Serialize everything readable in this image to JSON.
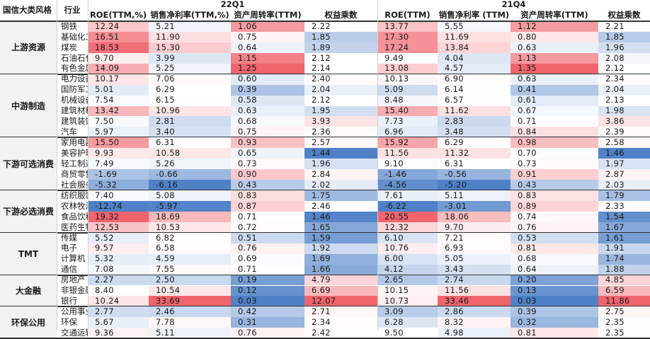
{
  "header": {
    "style_col": "国信大类风格",
    "industry_col": "行业",
    "periods": [
      "22Q1",
      "21Q4"
    ],
    "metrics": [
      "ROE(TTM,%)",
      "销售净利率(TTM,%)",
      "资产周转率(TTM)",
      "权益乘数"
    ],
    "metrics_21q4": [
      "ROE(TTM)",
      "销售净利率 (TTM)",
      "资产周转率(TTM)",
      "权益乘数"
    ]
  },
  "groups": [
    {
      "name": "上游资源",
      "rows": [
        {
          "industry": "钢铁",
          "q1": [
            "12.24",
            "5.21",
            "1.06",
            "2.22"
          ],
          "q4": [
            "13.77",
            "5.55",
            "1.12",
            "2.21"
          ]
        },
        {
          "industry": "基础化工",
          "q1": [
            "16.51",
            "11.90",
            "0.75",
            "1.85"
          ],
          "q4": [
            "17.30",
            "11.69",
            "0.80",
            "1.85"
          ]
        },
        {
          "industry": "煤炭",
          "q1": [
            "18.53",
            "15.30",
            "0.64",
            "1.89"
          ],
          "q4": [
            "17.24",
            "13.84",
            "0.63",
            "1.96"
          ]
        },
        {
          "industry": "石油石化",
          "q1": [
            "9.70",
            "3.99",
            "1.15",
            "2.12"
          ],
          "q4": [
            "9.49",
            "4.04",
            "1.13",
            "2.08"
          ]
        },
        {
          "industry": "有色金属",
          "q1": [
            "14.09",
            "5.25",
            "1.25",
            "2.14"
          ],
          "q4": [
            "13.08",
            "4.57",
            "1.35",
            "2.12"
          ]
        }
      ]
    },
    {
      "name": "中游制造",
      "rows": [
        {
          "industry": "电力设备",
          "q1": [
            "10.17",
            "7.06",
            "0.60",
            "2.40"
          ],
          "q4": [
            "10.13",
            "6.90",
            "0.63",
            "2.34"
          ]
        },
        {
          "industry": "国防军工",
          "q1": [
            "5.01",
            "6.29",
            "0.39",
            "2.04"
          ],
          "q4": [
            "5.09",
            "6.14",
            "0.41",
            "2.04"
          ]
        },
        {
          "industry": "机械设备",
          "q1": [
            "7.54",
            "6.15",
            "0.58",
            "2.12"
          ],
          "q4": [
            "8.48",
            "6.57",
            "0.61",
            "2.13"
          ]
        },
        {
          "industry": "建筑材料",
          "q1": [
            "13.42",
            "10.96",
            "0.63",
            "1.95"
          ],
          "q4": [
            "15.40",
            "11.62",
            "0.67",
            "1.98"
          ]
        },
        {
          "industry": "建筑装饰",
          "q1": [
            "7.50",
            "2.81",
            "0.68",
            "3.93"
          ],
          "q4": [
            "7.73",
            "2.83",
            "0.71",
            "3.86"
          ]
        },
        {
          "industry": "汽车",
          "q1": [
            "5.97",
            "3.40",
            "0.75",
            "2.36"
          ],
          "q4": [
            "6.96",
            "3.48",
            "0.84",
            "2.39"
          ]
        }
      ]
    },
    {
      "name": "下游可选消费",
      "rows": [
        {
          "industry": "家用电器",
          "q1": [
            "15.50",
            "6.31",
            "0.93",
            "2.57"
          ],
          "q4": [
            "15.92",
            "6.29",
            "0.98",
            "2.58"
          ]
        },
        {
          "industry": "美容护理",
          "q1": [
            "9.93",
            "10.58",
            "0.65",
            "1.44"
          ],
          "q4": [
            "11.56",
            "11.32",
            "0.70",
            "1.46"
          ]
        },
        {
          "industry": "轻工制造",
          "q1": [
            "7.49",
            "5.26",
            "0.73",
            "1.96"
          ],
          "q4": [
            "9.10",
            "6.31",
            "0.73",
            "1.97"
          ]
        },
        {
          "industry": "商贸零售",
          "q1": [
            "-1.69",
            "-0.66",
            "0.90",
            "2.84"
          ],
          "q4": [
            "-1.46",
            "-0.56",
            "0.91",
            "2.87"
          ]
        },
        {
          "industry": "社会服务",
          "q1": [
            "-5.32",
            "-6.16",
            "0.43",
            "2.02"
          ],
          "q4": [
            "-4.56",
            "-5.20",
            "0.43",
            "2.03"
          ]
        }
      ]
    },
    {
      "name": "下游必选消费",
      "rows": [
        {
          "industry": "纺织服饰",
          "q1": [
            "7.40",
            "5.08",
            "0.83",
            "1.75"
          ],
          "q4": [
            "7.61",
            "5.11",
            "0.83",
            "1.79"
          ]
        },
        {
          "industry": "农林牧渔",
          "q1": [
            "-12.74",
            "-5.97",
            "0.87",
            "2.46"
          ],
          "q4": [
            "-6.22",
            "-3.01",
            "0.89",
            "2.33"
          ]
        },
        {
          "industry": "食品饮料",
          "q1": [
            "19.32",
            "18.69",
            "0.71",
            "1.46"
          ],
          "q4": [
            "20.55",
            "18.06",
            "0.74",
            "1.54"
          ]
        },
        {
          "industry": "医药生物",
          "q1": [
            "12.53",
            "10.53",
            "0.72",
            "1.65"
          ],
          "q4": [
            "12.32",
            "9.70",
            "0.76",
            "1.67"
          ]
        }
      ]
    },
    {
      "name": "TMT",
      "rows": [
        {
          "industry": "传媒",
          "q1": [
            "5.52",
            "6.82",
            "0.51",
            "1.59"
          ],
          "q4": [
            "6.10",
            "7.21",
            "0.53",
            "1.61"
          ]
        },
        {
          "industry": "电子",
          "q1": [
            "9.57",
            "6.58",
            "0.76",
            "1.92"
          ],
          "q4": [
            "10.76",
            "6.93",
            "0.81",
            "1.91"
          ]
        },
        {
          "industry": "计算机",
          "q1": [
            "5.32",
            "4.59",
            "0.69",
            "1.69"
          ],
          "q4": [
            "6.00",
            "5.05",
            "0.68",
            "1.74"
          ]
        },
        {
          "industry": "通信",
          "q1": [
            "7.08",
            "7.55",
            "0.71",
            "1.66"
          ],
          "q4": [
            "4.12",
            "3.43",
            "0.64",
            "1.88"
          ]
        }
      ]
    },
    {
      "name": "大金融",
      "rows": [
        {
          "industry": "房地产",
          "q1": [
            "2.27",
            "2.50",
            "0.19",
            "4.79"
          ],
          "q4": [
            "2.65",
            "2.74",
            "0.20",
            "4.85"
          ]
        },
        {
          "industry": "非银金融",
          "q1": [
            "8.40",
            "10.54",
            "0.12",
            "6.69"
          ],
          "q4": [
            "10.15",
            "11.56",
            "0.13",
            "6.59"
          ]
        },
        {
          "industry": "银行",
          "q1": [
            "10.24",
            "33.69",
            "0.03",
            "12.07"
          ],
          "q4": [
            "10.73",
            "33.46",
            "0.03",
            "11.86"
          ]
        }
      ]
    },
    {
      "name": "环保公用",
      "rows": [
        {
          "industry": "公用事业",
          "q1": [
            "2.77",
            "2.46",
            "0.42",
            "2.71"
          ],
          "q4": [
            "3.09",
            "2.86",
            "0.39",
            "2.75"
          ]
        },
        {
          "industry": "环保",
          "q1": [
            "5.67",
            "7.78",
            "0.31",
            "2.34"
          ],
          "q4": [
            "6.28",
            "8.32",
            "0.32",
            "2.35"
          ]
        },
        {
          "industry": "交通运输",
          "q1": [
            "9.36",
            "5.11",
            "0.76",
            "2.42"
          ],
          "q4": [
            "9.50",
            "4.98",
            "0.81",
            "2.35"
          ]
        }
      ]
    }
  ],
  "colors": {
    "high": "#f0646c",
    "mid": "#ffffff",
    "low": "#4f81c7"
  }
}
